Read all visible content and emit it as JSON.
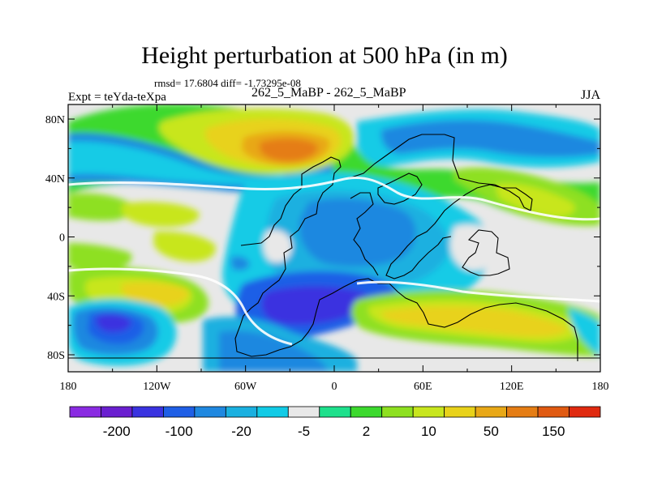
{
  "title": "Height perturbation at 500 hPa (in m)",
  "stats_text": "rmsd= 17.6804 diff= -1.73295e-08",
  "expt_text": "Expt = teYda-teXpa",
  "case_text": "262_5_MaBP - 262_5_MaBP",
  "season": "JJA",
  "lat_ticks": [
    "80N",
    "40N",
    "0",
    "40S",
    "80S"
  ],
  "lon_ticks": [
    "180",
    "120W",
    "60W",
    "0",
    "60E",
    "120E",
    "180"
  ],
  "colorbar": {
    "labels": [
      "-200",
      "-100",
      "-20",
      "-5",
      "2",
      "10",
      "50",
      "150"
    ],
    "colors": [
      "#8a2be2",
      "#6a1fd0",
      "#3a33e0",
      "#1f5fe6",
      "#1f88e0",
      "#1ab0e0",
      "#12cbe6",
      "#e8e8e8",
      "#1ee08c",
      "#3cd92e",
      "#8ee020",
      "#c8e61e",
      "#e8d21a",
      "#e8a817",
      "#e57d14",
      "#e05a12",
      "#e02a10"
    ]
  }
}
